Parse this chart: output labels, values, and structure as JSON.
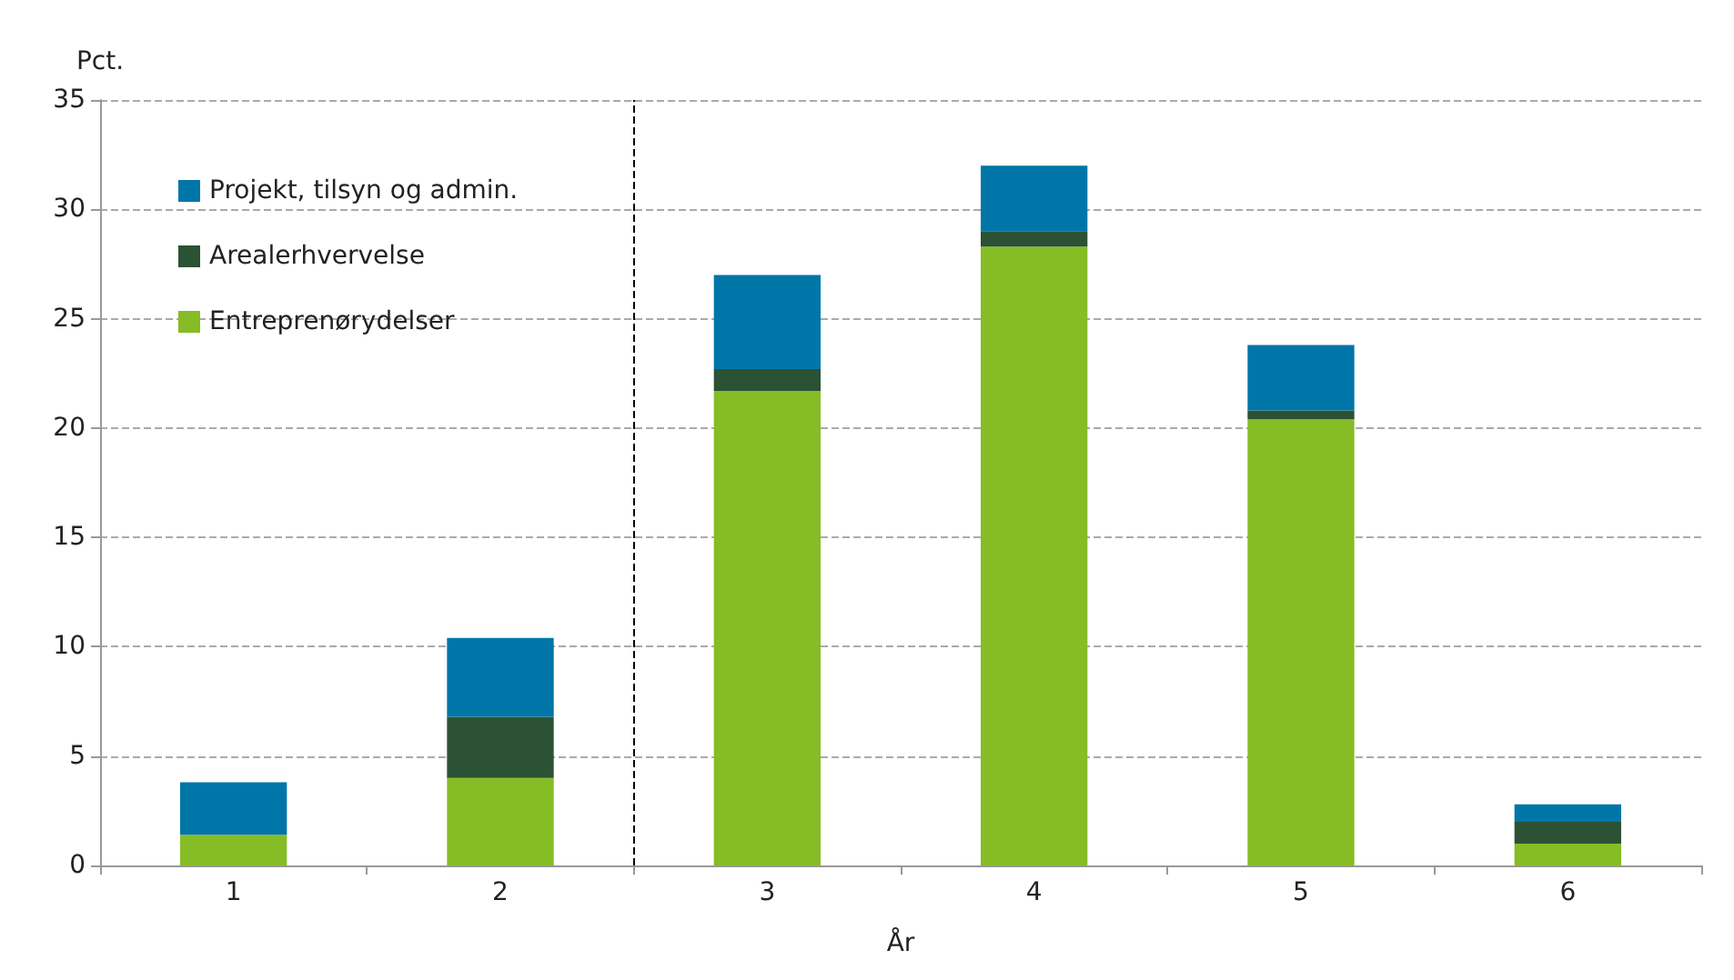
{
  "chart_data": {
    "type": "bar",
    "stacked": true,
    "xlabel": "År",
    "ylabel": "Pct.",
    "x": [
      1,
      2,
      3,
      4,
      5,
      6
    ],
    "xlim": [
      0.5,
      6.5
    ],
    "xticks": [
      1,
      2,
      3,
      4,
      5,
      6
    ],
    "ylim": [
      0,
      35
    ],
    "yticks": [
      0,
      5,
      10,
      15,
      20,
      25,
      30,
      35
    ],
    "grid": "y",
    "legend": "top left",
    "series": [
      {
        "name": "Entreprenørydelser",
        "color": "#86bc25",
        "values": [
          1.4,
          4.0,
          21.7,
          28.3,
          20.4,
          1.0
        ]
      },
      {
        "name": "Arealerhvervelse",
        "color": "#2b5234",
        "values": [
          0,
          2.8,
          1.0,
          0.7,
          0.4,
          1.0
        ]
      },
      {
        "name": "Projekt, tilsyn og admin.",
        "color": "#0076a8",
        "values": [
          2.4,
          3.6,
          4.3,
          3.0,
          3.0,
          0.8
        ]
      }
    ],
    "ref_lines": [
      {
        "axis": "x",
        "value": 2.5,
        "color": "#000000",
        "line_style": "dashed"
      }
    ]
  }
}
